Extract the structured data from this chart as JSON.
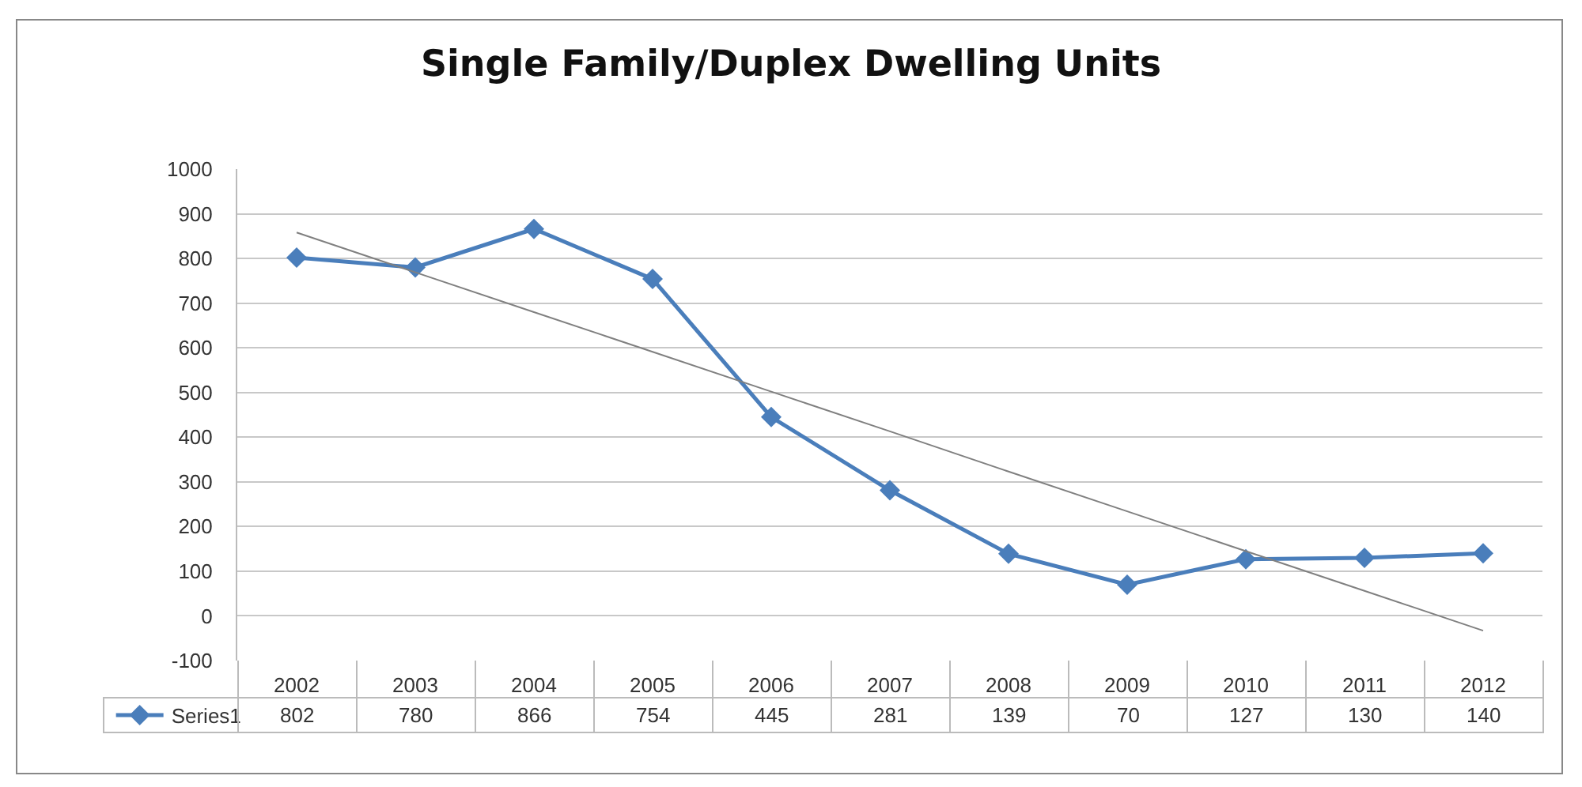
{
  "chart_data": {
    "type": "line",
    "title": "Single Family/Duplex Dwelling Units",
    "categories": [
      "2002",
      "2003",
      "2004",
      "2005",
      "2006",
      "2007",
      "2008",
      "2009",
      "2010",
      "2011",
      "2012"
    ],
    "series": [
      {
        "name": "Series1",
        "color": "#4a7ebb",
        "values": [
          802,
          780,
          866,
          754,
          445,
          281,
          139,
          70,
          127,
          130,
          140
        ],
        "value_labels": [
          "802",
          "780",
          "866",
          "754",
          "445",
          "281",
          "139",
          "70",
          "127",
          "130",
          "140"
        ]
      },
      {
        "type": "line",
        "color": "#808080",
        "values": [
          858,
          769,
          680,
          591,
          502,
          413,
          323,
          234,
          145,
          56,
          -33
        ],
        "marker": "none"
      }
    ],
    "ylim": [
      -100,
      1000
    ],
    "yticks": [
      -100,
      0,
      100,
      200,
      300,
      400,
      500,
      600,
      700,
      800,
      900,
      1000
    ],
    "grid": "y",
    "legend": "bottom left",
    "marker": "diamond"
  }
}
